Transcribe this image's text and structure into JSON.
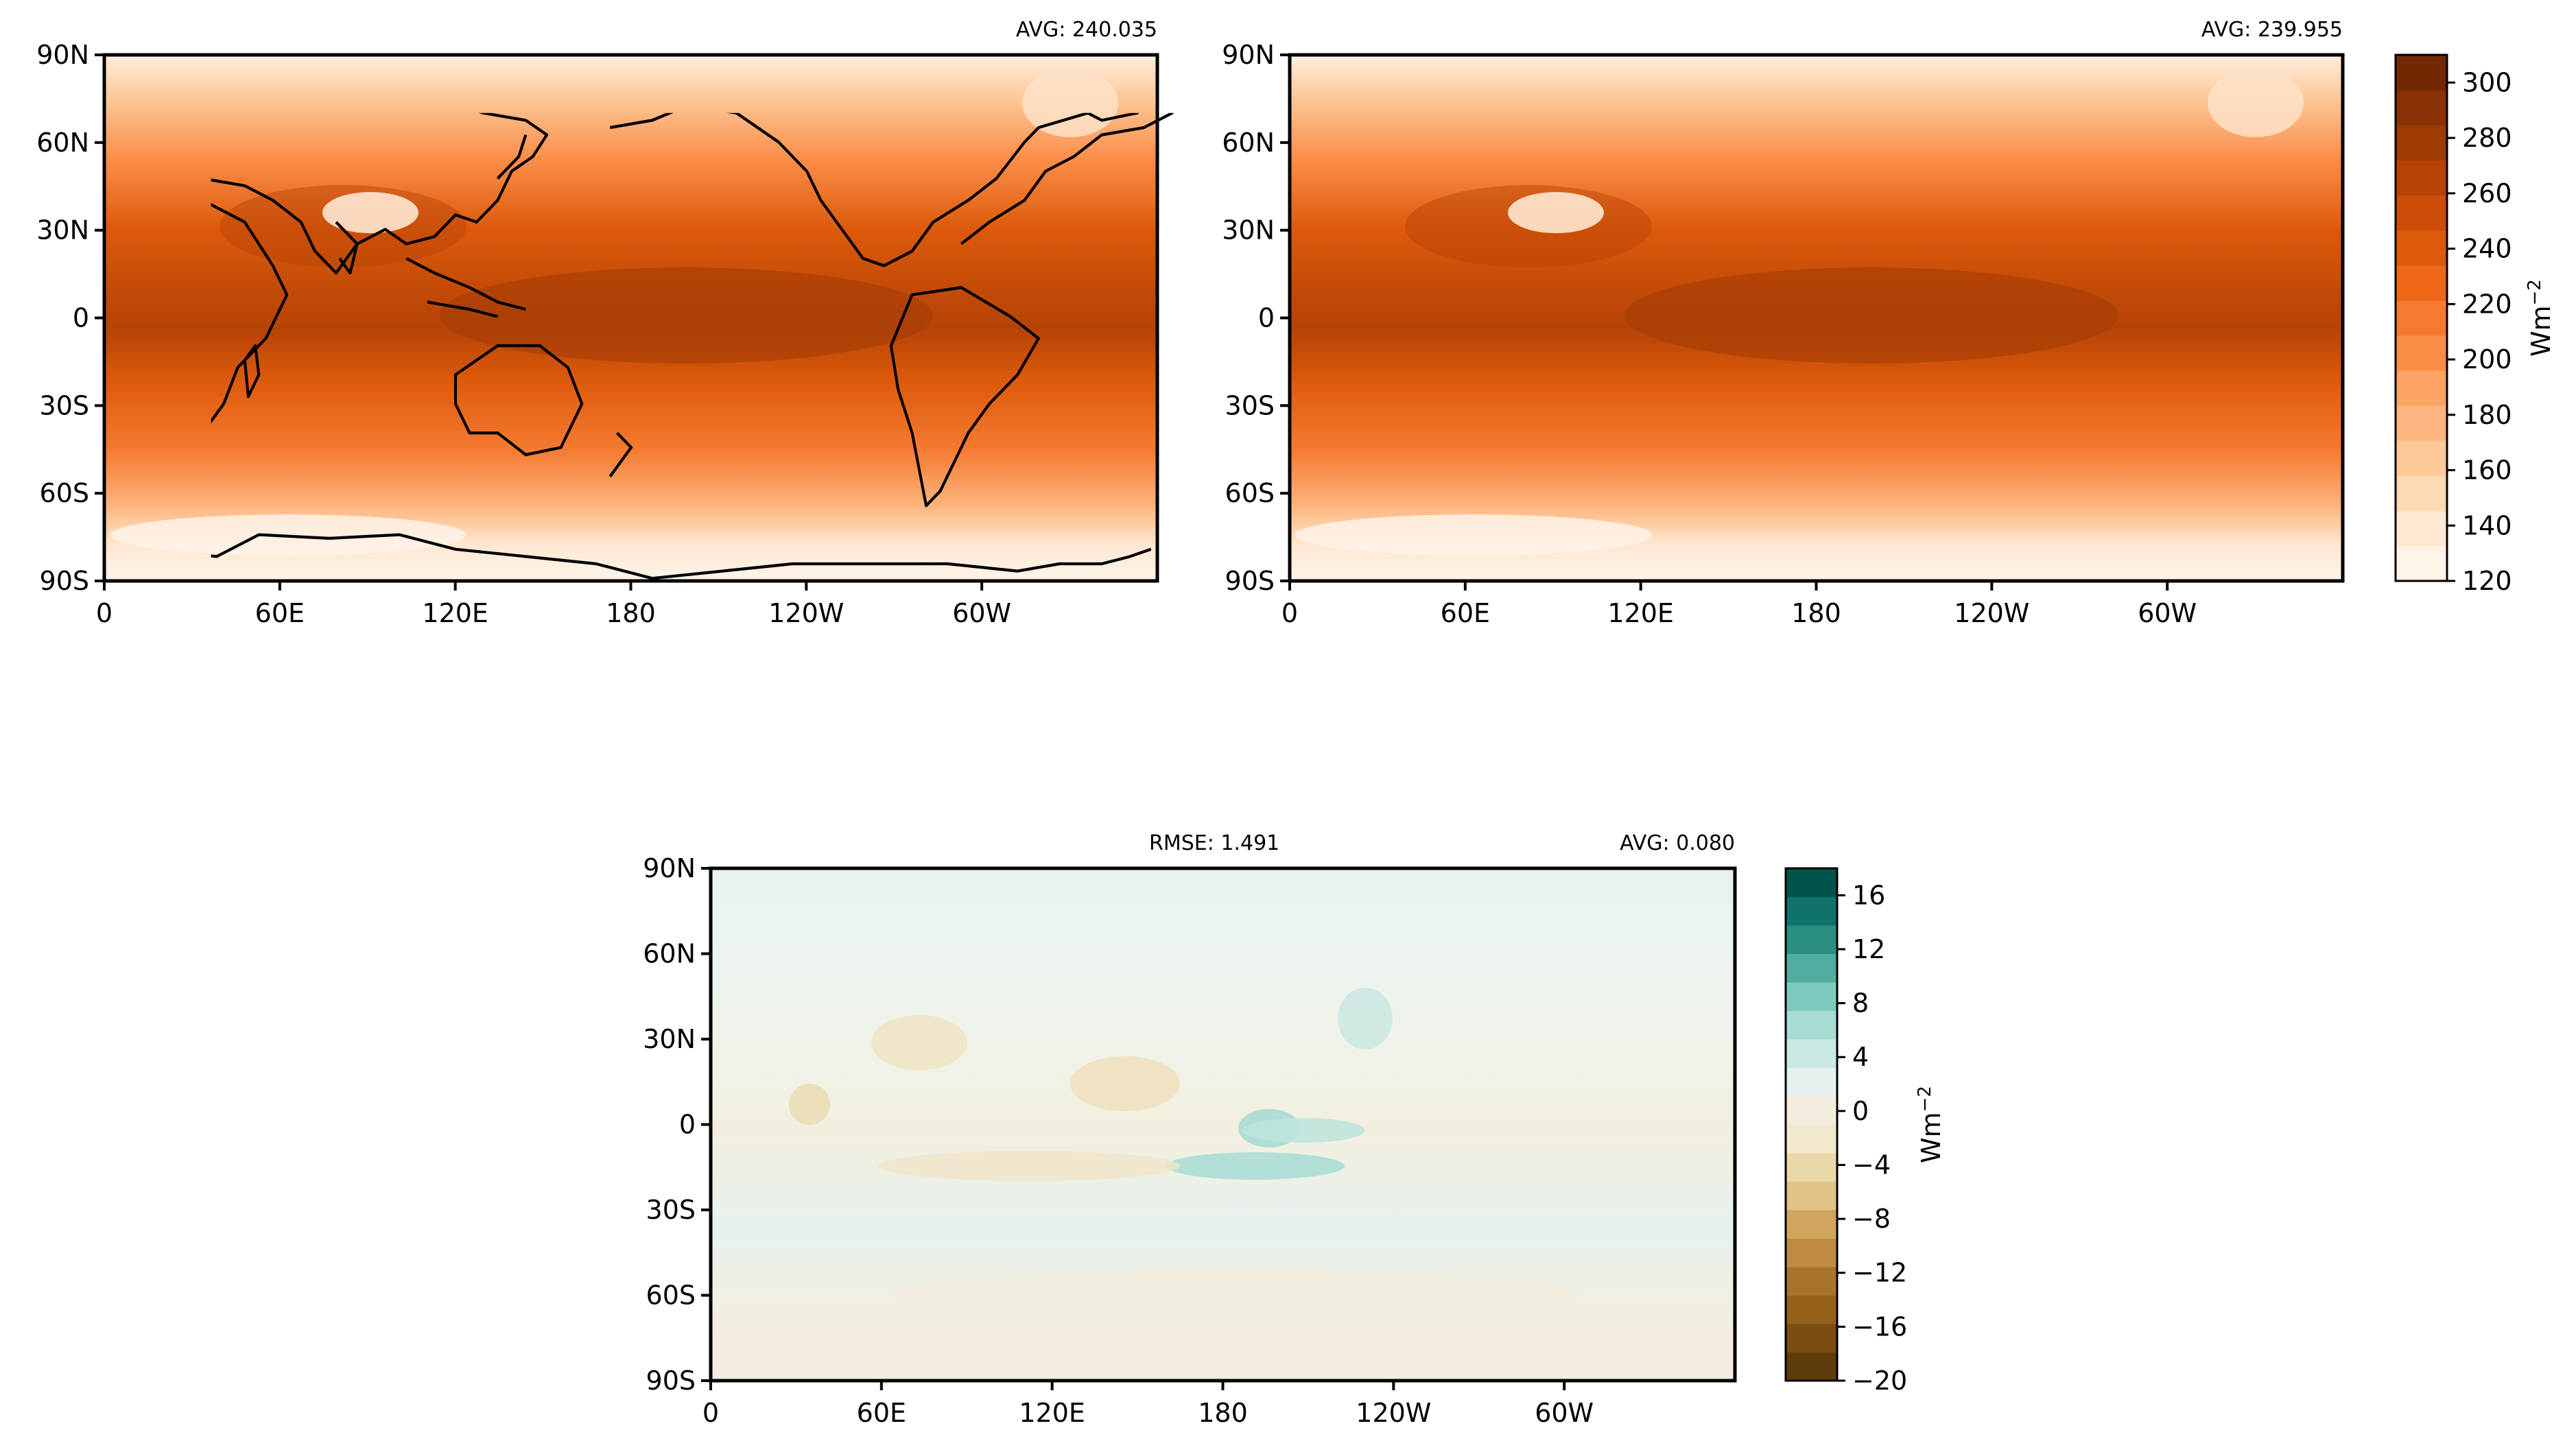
{
  "top_left_panel": {
    "avg_text": "AVG: 240.035"
  },
  "top_right_panel": {
    "avg_text": "AVG: 239.955"
  },
  "bottom_panel": {
    "rmse_text": "RMSE: 1.491",
    "avg_text": "AVG: 0.080"
  },
  "lat_ticks": [
    "90N",
    "60N",
    "30N",
    "0",
    "30S",
    "60S",
    "90S"
  ],
  "lon_ticks": [
    "0",
    "60E",
    "120E",
    "180",
    "120W",
    "60W"
  ],
  "top_colorbar": {
    "ticks": [
      "120",
      "140",
      "160",
      "180",
      "200",
      "220",
      "240",
      "260",
      "280",
      "300"
    ],
    "unit_base": "Wm",
    "unit_exp": "−2",
    "colors": [
      "#fff2e6",
      "#fee7d0",
      "#fdd9b4",
      "#fdc998",
      "#fdb67f",
      "#fda363",
      "#fb8d48",
      "#f57a30",
      "#ee6716",
      "#dd5a0b",
      "#cc4d07",
      "#b64306",
      "#9d3b05",
      "#883104",
      "#732803"
    ],
    "range": [
      120,
      310
    ]
  },
  "bottom_colorbar": {
    "ticks": [
      "−20",
      "−16",
      "−12",
      "−8",
      "−4",
      "0",
      "4",
      "8",
      "12",
      "16"
    ],
    "unit_base": "Wm",
    "unit_exp": "−2",
    "colors": [
      "#5e3b0b",
      "#7a4d11",
      "#936117",
      "#a8742b",
      "#bd8c42",
      "#cfa55f",
      "#dfc287",
      "#ead8aa",
      "#f2e8cd",
      "#f3ede0",
      "#e5f1ee",
      "#cbe9e4",
      "#a7dcd3",
      "#7fcabe",
      "#50aea1",
      "#2a8f83",
      "#10736a",
      "#005348"
    ],
    "range": [
      -20,
      18
    ]
  }
}
